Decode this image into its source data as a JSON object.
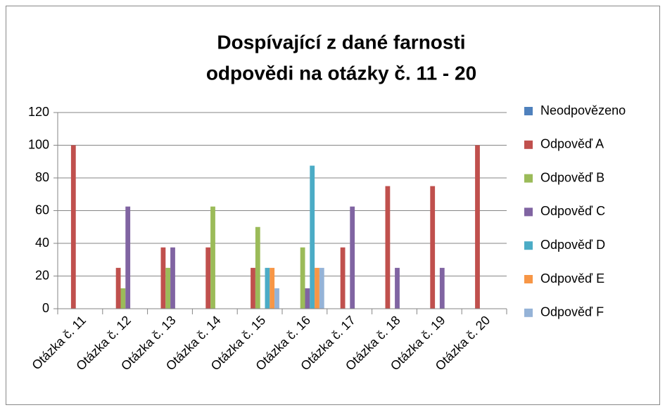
{
  "chart_data": {
    "type": "bar",
    "title": [
      "Dospívající z dané farnosti",
      "odpovědi na otázky č. 11 - 20"
    ],
    "categories": [
      "Otázka č. 11",
      "Otázka č. 12",
      "Otázka č. 13",
      "Otázka č. 14",
      "Otázka č. 15",
      "Otázka č. 16",
      "Otázka č. 17",
      "Otázka č. 18",
      "Otázka č. 19",
      "Otázka č. 20"
    ],
    "series": [
      {
        "name": "Neodpovězeno",
        "color": "#4f81bd",
        "values": [
          0,
          0,
          0,
          0,
          0,
          0,
          0,
          0,
          0,
          0
        ]
      },
      {
        "name": "Odpověď A",
        "color": "#c0504d",
        "values": [
          100,
          25,
          37.5,
          37.5,
          25,
          0,
          37.5,
          75,
          75,
          100
        ]
      },
      {
        "name": "Odpověď B",
        "color": "#9bbb59",
        "values": [
          0,
          12.5,
          25,
          62.5,
          50,
          37.5,
          0,
          0,
          0,
          0
        ]
      },
      {
        "name": "Odpověď C",
        "color": "#8064a2",
        "values": [
          0,
          62.5,
          37.5,
          0,
          0,
          12.5,
          62.5,
          25,
          25,
          0
        ]
      },
      {
        "name": "Odpověď D",
        "color": "#4bacc6",
        "values": [
          0,
          0,
          0,
          0,
          25,
          87.5,
          0,
          0,
          0,
          0
        ]
      },
      {
        "name": "Odpověď E",
        "color": "#f79646",
        "values": [
          0,
          0,
          0,
          0,
          25,
          25,
          0,
          0,
          0,
          0
        ]
      },
      {
        "name": "Odpověď F",
        "color": "#95b3d7",
        "values": [
          0,
          0,
          0,
          0,
          12.5,
          25,
          0,
          0,
          0,
          0
        ]
      }
    ],
    "ylim": [
      0,
      120
    ],
    "yticks": [
      0,
      20,
      40,
      60,
      80,
      100,
      120
    ],
    "grid": true,
    "legend": "right"
  }
}
